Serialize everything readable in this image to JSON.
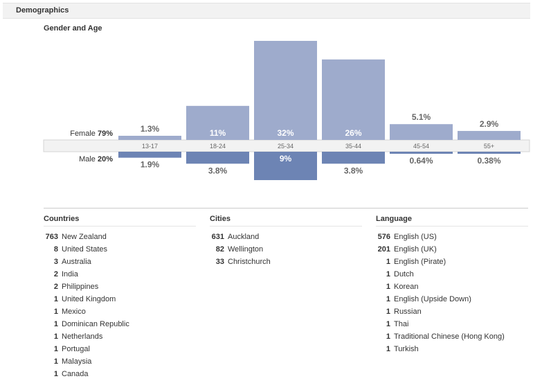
{
  "header": {
    "title": "Demographics"
  },
  "chart_data": {
    "type": "bar",
    "title": "Gender and Age",
    "categories": [
      "13-17",
      "18-24",
      "25-34",
      "35-44",
      "45-54",
      "55+"
    ],
    "series": [
      {
        "name": "Female",
        "total": "79%",
        "values": [
          1.3,
          11,
          32,
          26,
          5.1,
          2.9
        ],
        "labels": [
          "1.3%",
          "11%",
          "32%",
          "26%",
          "5.1%",
          "2.9%"
        ]
      },
      {
        "name": "Male",
        "total": "20%",
        "values": [
          1.9,
          3.8,
          9,
          3.8,
          0.64,
          0.38
        ],
        "labels": [
          "1.9%",
          "3.8%",
          "9%",
          "3.8%",
          "0.64%",
          "0.38%"
        ]
      }
    ],
    "colors": {
      "female": "#9eabcc",
      "male": "#6d84b4",
      "axis_band": "#f2f2f2"
    }
  },
  "countries": {
    "title": "Countries",
    "items": [
      {
        "count": "763",
        "name": "New Zealand"
      },
      {
        "count": "8",
        "name": "United States"
      },
      {
        "count": "3",
        "name": "Australia"
      },
      {
        "count": "2",
        "name": "India"
      },
      {
        "count": "2",
        "name": "Philippines"
      },
      {
        "count": "1",
        "name": "United Kingdom"
      },
      {
        "count": "1",
        "name": "Mexico"
      },
      {
        "count": "1",
        "name": "Dominican Republic"
      },
      {
        "count": "1",
        "name": "Netherlands"
      },
      {
        "count": "1",
        "name": "Portugal"
      },
      {
        "count": "1",
        "name": "Malaysia"
      },
      {
        "count": "1",
        "name": "Canada"
      }
    ]
  },
  "cities": {
    "title": "Cities",
    "items": [
      {
        "count": "631",
        "name": "Auckland"
      },
      {
        "count": "82",
        "name": "Wellington"
      },
      {
        "count": "33",
        "name": "Christchurch"
      }
    ]
  },
  "language": {
    "title": "Language",
    "items": [
      {
        "count": "576",
        "name": "English (US)"
      },
      {
        "count": "201",
        "name": "English (UK)"
      },
      {
        "count": "1",
        "name": "English (Pirate)"
      },
      {
        "count": "1",
        "name": "Dutch"
      },
      {
        "count": "1",
        "name": "Korean"
      },
      {
        "count": "1",
        "name": "English (Upside Down)"
      },
      {
        "count": "1",
        "name": "Russian"
      },
      {
        "count": "1",
        "name": "Thai"
      },
      {
        "count": "1",
        "name": "Traditional Chinese (Hong Kong)"
      },
      {
        "count": "1",
        "name": "Turkish"
      }
    ]
  }
}
